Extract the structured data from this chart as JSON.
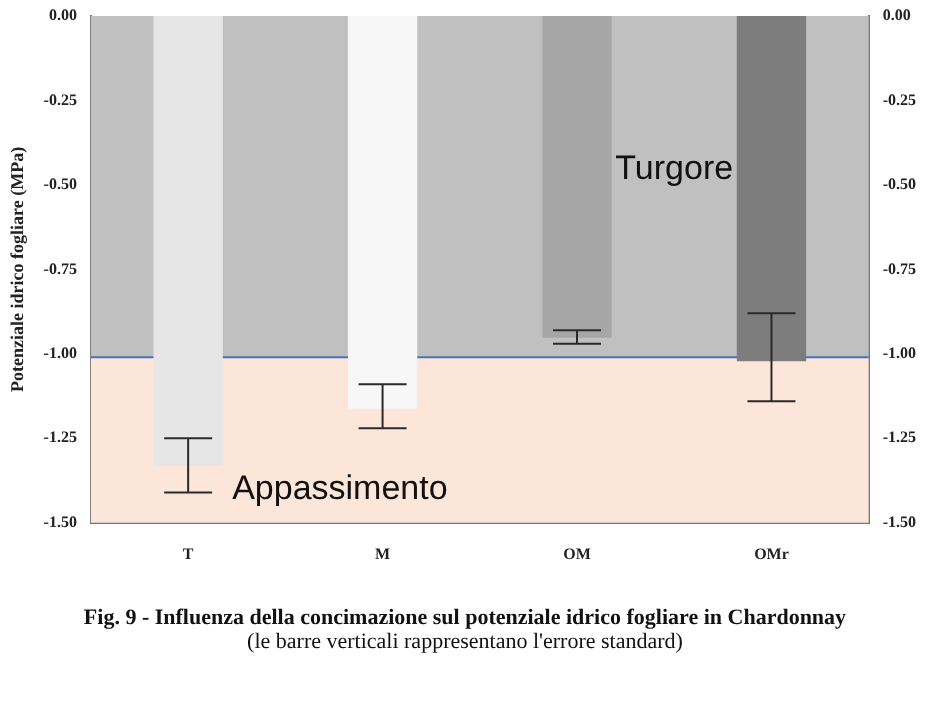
{
  "chart_data": {
    "type": "bar",
    "title": "Fig. 9  -  Influenza della concimazione  sul potenziale idrico fogliare in Chardonnay",
    "subtitle": "(le barre verticali rappresentano l'errore standard)",
    "ylabel": "Potenziale idrico fogliare (MPa)",
    "categories": [
      "T",
      "M",
      "OM",
      "OMr"
    ],
    "values": [
      -1.33,
      -1.16,
      -0.95,
      -1.02
    ],
    "colors": [
      "#e6e6e6",
      "#f7f7f7",
      "#a6a6a6",
      "#7d7d7d"
    ],
    "errors": [
      [
        -1.41,
        -1.25
      ],
      [
        -1.22,
        -1.09
      ],
      [
        -0.97,
        -0.93
      ],
      [
        -1.14,
        -0.88
      ]
    ],
    "ylim": [
      -1.5,
      0
    ],
    "yticks": [
      {
        "value": -1.5,
        "label": "-1.50"
      },
      {
        "value": -1.25,
        "label": "-1.25"
      },
      {
        "value": -1,
        "label": "-1.00"
      },
      {
        "value": -0.75,
        "label": "-0.75"
      },
      {
        "value": -0.5,
        "label": "-0.50"
      },
      {
        "value": -0.25,
        "label": "-0.25"
      },
      {
        "value": 0,
        "label": "0.00"
      }
    ],
    "y2lim": [
      -1.5,
      0
    ],
    "y2ticks": [
      {
        "value": -1.5,
        "label": "-1.50"
      },
      {
        "value": -1.25,
        "label": "-1.25"
      },
      {
        "value": -1,
        "label": "-1.00"
      },
      {
        "value": -0.75,
        "label": "-0.75"
      },
      {
        "value": -0.5,
        "label": "-0.50"
      },
      {
        "value": -0.25,
        "label": "-0.25"
      },
      {
        "value": 0,
        "label": "0.00"
      }
    ],
    "ref_lines": [
      {
        "axis": "y",
        "value": -1.01,
        "color": "#4472c4"
      }
    ],
    "bands": [
      {
        "axis": "y",
        "from": -1.01,
        "to": 0,
        "label": "Turgore",
        "color": "#c0c0c0"
      },
      {
        "axis": "y",
        "from": -1.5,
        "to": -1.01,
        "label": "Appassimento",
        "color": "#fbe6d9"
      }
    ],
    "grid": false,
    "legend": false
  }
}
